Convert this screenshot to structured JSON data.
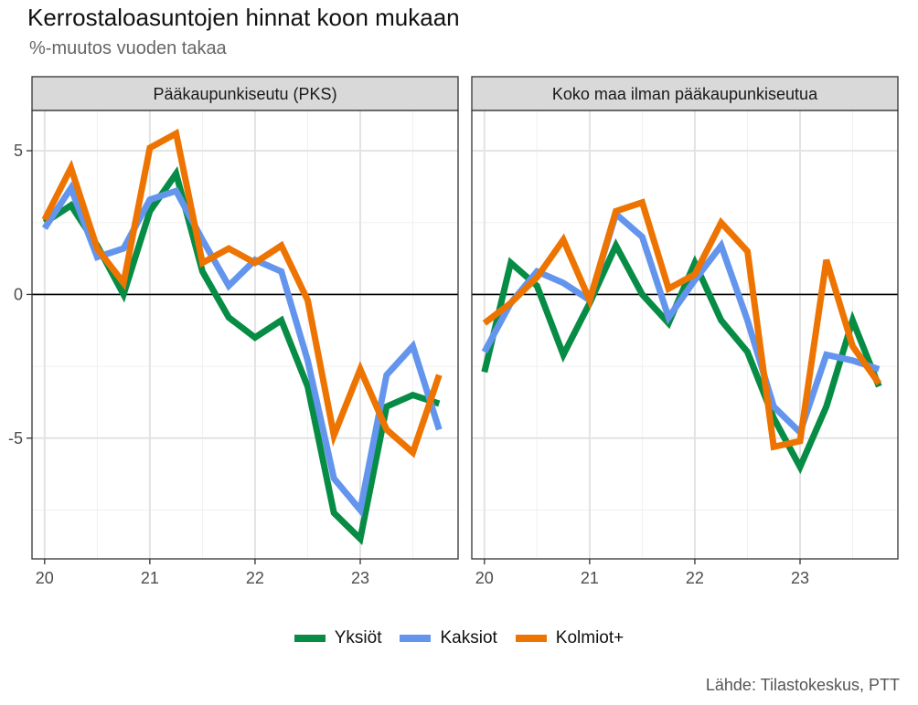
{
  "header": {
    "title": "Kerrostaloasuntojen hinnat koon mukaan",
    "subtitle": "%-muutos vuoden takaa",
    "caption": "Lähde: Tilastokeskus, PTT"
  },
  "chart_data": {
    "type": "line",
    "ylabel": "",
    "xlabel": "",
    "ylim": [
      -9.2,
      6.4
    ],
    "xlim": [
      19.88,
      23.93
    ],
    "yticks": [
      -5,
      0,
      5
    ],
    "ytick_labels": [
      "-5",
      "0",
      "5"
    ],
    "xticks": [
      20,
      21,
      22,
      23
    ],
    "xtick_labels": [
      "20",
      "21",
      "22",
      "23"
    ],
    "grid": true,
    "zero_line": true,
    "legend_position": "bottom",
    "x": [
      20.0,
      20.25,
      20.5,
      20.75,
      21.0,
      21.25,
      21.5,
      21.75,
      22.0,
      22.25,
      22.5,
      22.75,
      23.0,
      23.25,
      23.5,
      23.75
    ],
    "series_colors": {
      "Yksiöt": "#078C45",
      "Kaksiot": "#6495ED",
      "Kolmiot+": "#EE7401"
    },
    "panels": [
      {
        "title": "Pääkaupunkiseutu (PKS)",
        "series": [
          {
            "name": "Yksiöt",
            "values": [
              2.5,
              3.1,
              1.7,
              0.0,
              2.9,
              4.2,
              0.8,
              -0.8,
              -1.5,
              -0.9,
              -3.2,
              -7.6,
              -8.5,
              -3.9,
              -3.5,
              -3.8
            ]
          },
          {
            "name": "Kaksiot",
            "values": [
              2.3,
              3.7,
              1.3,
              1.6,
              3.3,
              3.6,
              1.9,
              0.3,
              1.2,
              0.8,
              -2.3,
              -6.4,
              -7.5,
              -2.8,
              -1.8,
              -4.7
            ]
          },
          {
            "name": "Kolmiot+",
            "values": [
              2.6,
              4.4,
              1.6,
              0.4,
              5.1,
              5.6,
              1.1,
              1.6,
              1.1,
              1.7,
              -0.2,
              -4.9,
              -2.6,
              -4.7,
              -5.5,
              -2.8
            ]
          }
        ]
      },
      {
        "title": "Koko maa ilman pääkaupunkiseutua",
        "series": [
          {
            "name": "Yksiöt",
            "values": [
              -2.7,
              1.1,
              0.3,
              -2.1,
              -0.3,
              1.7,
              0.0,
              -1.0,
              1.1,
              -0.9,
              -2.0,
              -4.3,
              -6.0,
              -3.9,
              -0.9,
              -3.2
            ]
          },
          {
            "name": "Kaksiot",
            "values": [
              -2.0,
              -0.3,
              0.8,
              0.4,
              -0.2,
              2.8,
              2.0,
              -0.8,
              0.5,
              1.7,
              -0.9,
              -3.9,
              -4.8,
              -2.1,
              -2.3,
              -2.6
            ]
          },
          {
            "name": "Kolmiot+",
            "values": [
              -1.0,
              -0.3,
              0.6,
              1.9,
              -0.2,
              2.9,
              3.2,
              0.2,
              0.7,
              2.5,
              1.5,
              -5.3,
              -5.1,
              1.2,
              -1.8,
              -3.1
            ]
          }
        ]
      }
    ]
  }
}
